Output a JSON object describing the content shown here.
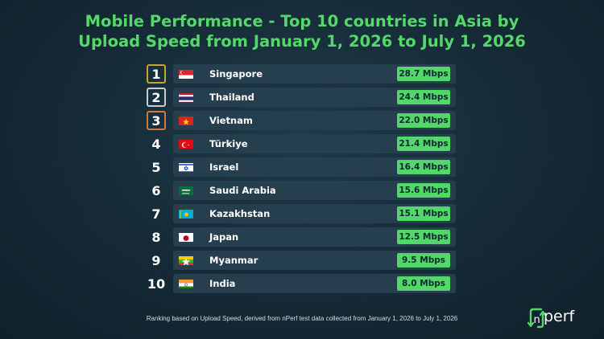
{
  "chart_data": {
    "type": "table",
    "title_line1": "Mobile Performance - Top 10 countries in Asia by",
    "title_line2": "Upload Speed from January 1, 2026 to July 1, 2026",
    "rows": [
      {
        "rank": "1",
        "country": "Singapore",
        "value": 28.7,
        "label": "28.7 Mbps",
        "flag": "singapore-flag-icon",
        "rank_border": "#c9a227"
      },
      {
        "rank": "2",
        "country": "Thailand",
        "value": 24.4,
        "label": "24.4 Mbps",
        "flag": "thailand-flag-icon",
        "rank_border": "#c8ccd0"
      },
      {
        "rank": "3",
        "country": "Vietnam",
        "value": 22.0,
        "label": "22.0 Mbps",
        "flag": "vietnam-flag-icon",
        "rank_border": "#d07a3c"
      },
      {
        "rank": "4",
        "country": "Türkiye",
        "value": 21.4,
        "label": "21.4 Mbps",
        "flag": "turkiye-flag-icon"
      },
      {
        "rank": "5",
        "country": "Israel",
        "value": 16.4,
        "label": "16.4 Mbps",
        "flag": "israel-flag-icon"
      },
      {
        "rank": "6",
        "country": "Saudi Arabia",
        "value": 15.6,
        "label": "15.6 Mbps",
        "flag": "saudi-arabia-flag-icon"
      },
      {
        "rank": "7",
        "country": "Kazakhstan",
        "value": 15.1,
        "label": "15.1 Mbps",
        "flag": "kazakhstan-flag-icon"
      },
      {
        "rank": "8",
        "country": "Japan",
        "value": 12.5,
        "label": "12.5 Mbps",
        "flag": "japan-flag-icon"
      },
      {
        "rank": "9",
        "country": "Myanmar",
        "value": 9.5,
        "label": "9.5 Mbps",
        "flag": "myanmar-flag-icon"
      },
      {
        "rank": "10",
        "country": "India",
        "value": 8.0,
        "label": "8.0 Mbps",
        "flag": "india-flag-icon"
      }
    ],
    "footnote": "Ranking based on Upload Speed, derived from nPerf test data collected from January 1, 2026 to July 1, 2026"
  },
  "logo": {
    "text": "perf",
    "icon": "nperf-logo-icon"
  },
  "colors": {
    "accent_green": "#55d86a",
    "bar_bg": "#253f4e",
    "background": "#152a36"
  }
}
